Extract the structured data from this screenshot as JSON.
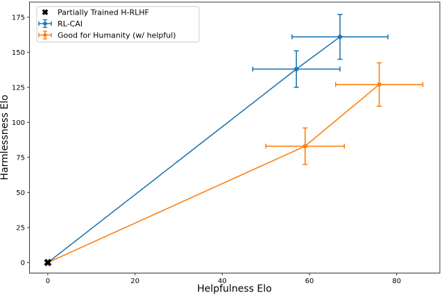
{
  "chart_data": {
    "type": "line",
    "subtype": "scatter-line-with-errorbars",
    "title": "",
    "xlabel": "Helpfulness Elo",
    "ylabel": "Harmlessness Elo",
    "xlim": [
      -4.2,
      89.9
    ],
    "ylim": [
      -7.5,
      185.8
    ],
    "x_ticks": [
      0,
      20,
      40,
      60,
      80
    ],
    "y_ticks": [
      0,
      25,
      50,
      75,
      100,
      125,
      150,
      175
    ],
    "grid": false,
    "legend_position": "upper-left",
    "colors": {
      "partially_trained": "#000000",
      "rl_cai": "#1f77b4",
      "good_for_humanity": "#ff7f0e",
      "spine": "#333333",
      "legend_border": "#cccccc",
      "background": "#ffffff"
    },
    "series": [
      {
        "name": "Partially Trained H-RLHF",
        "kind": "scatter",
        "marker": "X",
        "color": "#000000",
        "points": [
          {
            "x": 0,
            "y": 0
          }
        ]
      },
      {
        "name": "RL-CAI",
        "kind": "line-errorbar",
        "marker": "o",
        "color": "#1f77b4",
        "points": [
          {
            "x": 0,
            "y": 0,
            "xerr": 0,
            "yerr": 0
          },
          {
            "x": 57,
            "y": 138,
            "xerr": 10,
            "yerr": 13
          },
          {
            "x": 67,
            "y": 161,
            "xerr": 11,
            "yerr": 16
          }
        ]
      },
      {
        "name": "Good for Humanity (w/ helpful)",
        "kind": "line-errorbar",
        "marker": "o",
        "color": "#ff7f0e",
        "points": [
          {
            "x": 0,
            "y": 0,
            "xerr": 0,
            "yerr": 0
          },
          {
            "x": 59,
            "y": 83,
            "xerr": 9,
            "yerr": 13
          },
          {
            "x": 76,
            "y": 127,
            "xerr": 10,
            "yerr": 15.5
          }
        ]
      }
    ]
  }
}
